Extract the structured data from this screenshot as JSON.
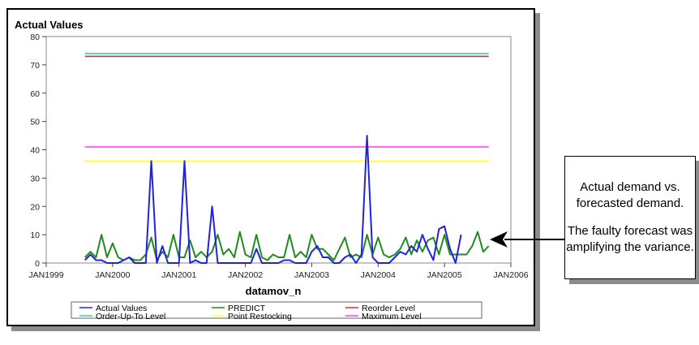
{
  "annotation": {
    "line1": "Actual demand vs. forecasted demand.",
    "line2": "The faulty forecast was amplifying the variance."
  },
  "chart_data": {
    "type": "line",
    "title": "Actual Values",
    "xlabel": "datamov_n",
    "ylabel": "",
    "ylim": [
      0,
      80
    ],
    "xlim": [
      "1999-01-01",
      "2006-01-01"
    ],
    "y_ticks": [
      0,
      10,
      20,
      30,
      40,
      50,
      60,
      70,
      80
    ],
    "x_ticks": [
      "JAN1999",
      "JAN2000",
      "JAN2001",
      "JAN2002",
      "JAN2003",
      "JAN2004",
      "JAN2005",
      "JAN2006"
    ],
    "grid": false,
    "legend_position": "bottom",
    "x_start": "1999-08",
    "x_step": "month",
    "series": [
      {
        "name": "Actual Values",
        "color": "#2222dd",
        "values": [
          1,
          3,
          1,
          1,
          0,
          0,
          0,
          1,
          2,
          0,
          0,
          0,
          36,
          0,
          6,
          0,
          0,
          0,
          36,
          0,
          1,
          0,
          0,
          20,
          0,
          0,
          0,
          0,
          0,
          0,
          0,
          5,
          0,
          0,
          0,
          0,
          1,
          1,
          0,
          0,
          0,
          4,
          6,
          2,
          2,
          0,
          0,
          2,
          3,
          0,
          3,
          45,
          2,
          0,
          0,
          0,
          2,
          4,
          3,
          6,
          4,
          10,
          5,
          1,
          12,
          13,
          5,
          0,
          10
        ]
      },
      {
        "name": "PREDICT",
        "color": "#1f8c1f",
        "values": [
          2,
          4,
          2,
          10,
          2,
          7,
          2,
          1,
          2,
          1,
          1,
          3,
          9,
          1,
          4,
          2,
          10,
          2,
          2,
          8,
          2,
          4,
          2,
          4,
          10,
          3,
          5,
          2,
          11,
          3,
          2,
          10,
          2,
          1,
          3,
          2,
          2,
          10,
          2,
          4,
          2,
          10,
          5,
          5,
          3,
          1,
          5,
          9,
          2,
          3,
          2,
          10,
          3,
          9,
          3,
          2,
          3,
          5,
          9,
          3,
          8,
          4,
          8,
          9,
          3,
          10,
          3,
          3,
          3,
          3,
          6,
          11,
          4,
          6
        ]
      },
      {
        "name": "Reorder Level",
        "color": "#cc3333",
        "values": [
          73,
          73
        ]
      },
      {
        "name": "Order-Up-To Level",
        "color": "#33cccc",
        "values": [
          74,
          74
        ]
      },
      {
        "name": "Point Restocking",
        "color": "#ffff33",
        "values": [
          36,
          36
        ]
      },
      {
        "name": "Maximum Level",
        "color": "#ff33ff",
        "values": [
          41,
          41
        ]
      }
    ],
    "legend_order": [
      "Actual Values",
      "PREDICT",
      "Reorder Level",
      "Order-Up-To Level",
      "Point Restocking",
      "Maximum Level"
    ]
  }
}
